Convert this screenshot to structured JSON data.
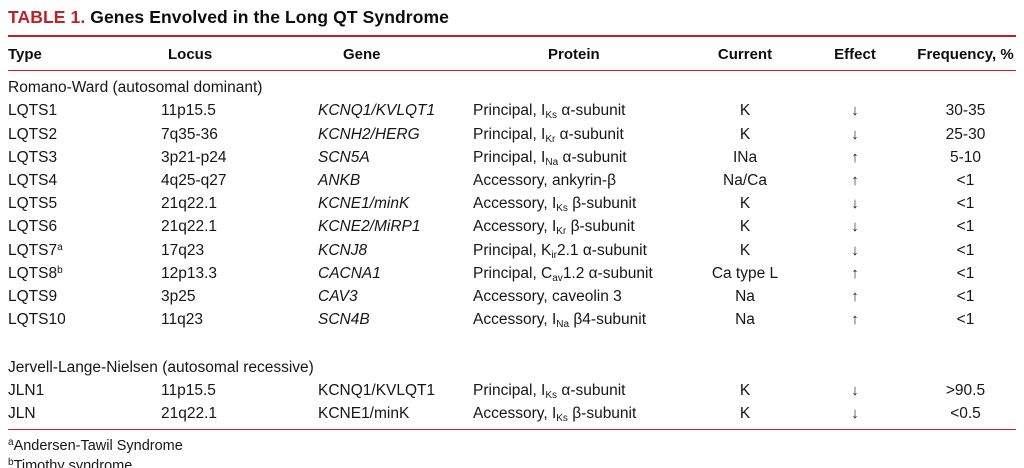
{
  "table": {
    "title_label": "TABLE 1.",
    "title_text": "Genes Envolved in the Long QT Syndrome",
    "columns": [
      "Type",
      "Locus",
      "Gene",
      "Protein",
      "Current",
      "Effect",
      "Frequency, %"
    ],
    "sections": [
      {
        "heading": "Romano-Ward (autosomal dominant)",
        "rows": [
          {
            "type": "LQTS1",
            "locus": "11p15.5",
            "gene": "KCNQ1/KVLQT1",
            "gene_italic": true,
            "protein": "Principal, I~Ks~ α-subunit",
            "current": "K",
            "effect": "↓",
            "frequency": "30-35"
          },
          {
            "type": "LQTS2",
            "locus": "7q35-36",
            "gene": "KCNH2/HERG",
            "gene_italic": true,
            "protein": "Principal, I~Kr~ α-subunit",
            "current": "K",
            "effect": "↓",
            "frequency": "25-30"
          },
          {
            "type": "LQTS3",
            "locus": "3p21-p24",
            "gene": "SCN5A",
            "gene_italic": true,
            "protein": "Principal, I~Na~ α-subunit",
            "current": "INa",
            "effect": "↑",
            "frequency": "5-10"
          },
          {
            "type": "LQTS4",
            "locus": "4q25-q27",
            "gene": "ANKB",
            "gene_italic": true,
            "protein": "Accessory, ankyrin-β",
            "current": "Na/Ca",
            "effect": "↑",
            "frequency": "<1"
          },
          {
            "type": "LQTS5",
            "locus": "21q22.1",
            "gene": "KCNE1/minK",
            "gene_italic": true,
            "protein": "Accessory, I~Ks~ β-subunit",
            "current": "K",
            "effect": "↓",
            "frequency": "<1"
          },
          {
            "type": "LQTS6",
            "locus": "21q22.1",
            "gene": "KCNE2/MiRP1",
            "gene_italic": true,
            "protein": "Accessory, I~Kr~ β-subunit",
            "current": "K",
            "effect": "↓",
            "frequency": "<1"
          },
          {
            "type": "LQTS7^a^",
            "locus": "17q23",
            "gene": "KCNJ8",
            "gene_italic": true,
            "protein": "Principal, K~ir~2.1 α-subunit",
            "current": "K",
            "effect": "↓",
            "frequency": "<1"
          },
          {
            "type": "LQTS8^b^",
            "locus": "12p13.3",
            "gene": "CACNA1",
            "gene_italic": true,
            "protein": "Principal, C~av~1.2 α-subunit",
            "current": "Ca type L",
            "effect": "↑",
            "frequency": "<1"
          },
          {
            "type": "LQTS9",
            "locus": "3p25",
            "gene": "CAV3",
            "gene_italic": true,
            "protein": "Accessory, caveolin 3",
            "current": "Na",
            "effect": "↑",
            "frequency": "<1"
          },
          {
            "type": "LQTS10",
            "locus": "11q23",
            "gene": "SCN4B",
            "gene_italic": true,
            "protein": "Accessory, I~Na~ β4-subunit",
            "current": "Na",
            "effect": "↑",
            "frequency": "<1"
          }
        ]
      },
      {
        "heading": "Jervell-Lange-Nielsen (autosomal recessive)",
        "rows": [
          {
            "type": "JLN1",
            "locus": "11p15.5",
            "gene": "KCNQ1/KVLQT1",
            "gene_italic": false,
            "protein": "Principal, I~Ks~ α-subunit",
            "current": "K",
            "effect": "↓",
            "frequency": ">90.5"
          },
          {
            "type": "JLN",
            "locus": "21q22.1",
            "gene": "KCNE1/minK",
            "gene_italic": false,
            "protein": "Accessory, I~Ks~ β-subunit",
            "current": "K",
            "effect": "↓",
            "frequency": "<0.5"
          }
        ]
      }
    ],
    "footnotes": [
      "^a^Andersen-Tawil Syndrome",
      "^b^Timothy syndrome"
    ],
    "colors": {
      "accent_red": "#c22028",
      "text": "#141414"
    }
  }
}
